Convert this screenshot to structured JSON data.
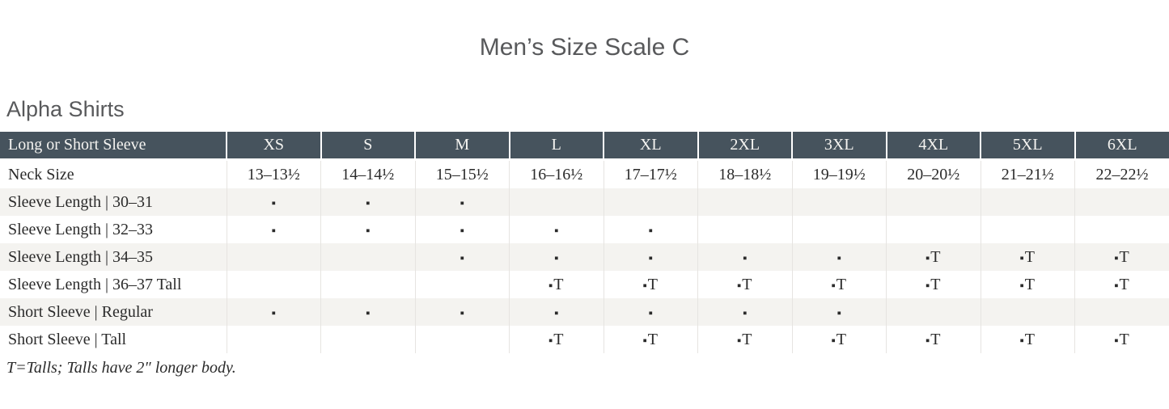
{
  "title": "Men’s Size Scale C",
  "section": "Alpha Shirts",
  "footnote": "T=Talls; Talls have 2″ longer body.",
  "colors": {
    "header_bg": "#46535D",
    "header_text": "#F5F4F1",
    "stripe_bg": "#F4F3F0",
    "body_text": "#2B2B2B",
    "heading_text": "#58595B",
    "divider": "#E6E4E1"
  },
  "table": {
    "header_label": "Long or Short Sleeve",
    "columns": [
      "XS",
      "S",
      "M",
      "L",
      "XL",
      "2XL",
      "3XL",
      "4XL",
      "5XL",
      "6XL"
    ],
    "rows": [
      {
        "label": "Neck Size",
        "cells": [
          "13–13½",
          "14–14½",
          "15–15½",
          "16–16½",
          "17–17½",
          "18–18½",
          "19–19½",
          "20–20½",
          "21–21½",
          "22–22½"
        ]
      },
      {
        "label": "Sleeve Length  |  30–31",
        "cells": [
          "▪",
          "▪",
          "▪",
          "",
          "",
          "",
          "",
          "",
          "",
          ""
        ]
      },
      {
        "label": "Sleeve Length  |  32–33",
        "cells": [
          "▪",
          "▪",
          "▪",
          "▪",
          "▪",
          "",
          "",
          "",
          "",
          ""
        ]
      },
      {
        "label": "Sleeve Length  |  34–35",
        "cells": [
          "",
          "",
          "▪",
          "▪",
          "▪",
          "▪",
          "▪",
          "▪T",
          "▪T",
          "▪T"
        ]
      },
      {
        "label": "Sleeve Length  |  36–37 Tall",
        "cells": [
          "",
          "",
          "",
          "▪T",
          "▪T",
          "▪T",
          "▪T",
          "▪T",
          "▪T",
          "▪T"
        ]
      },
      {
        "label": "Short Sleeve  |  Regular",
        "cells": [
          "▪",
          "▪",
          "▪",
          "▪",
          "▪",
          "▪",
          "▪",
          "",
          "",
          ""
        ]
      },
      {
        "label": "Short Sleeve  |  Tall",
        "cells": [
          "",
          "",
          "",
          "▪T",
          "▪T",
          "▪T",
          "▪T",
          "▪T",
          "▪T",
          "▪T"
        ]
      }
    ]
  }
}
